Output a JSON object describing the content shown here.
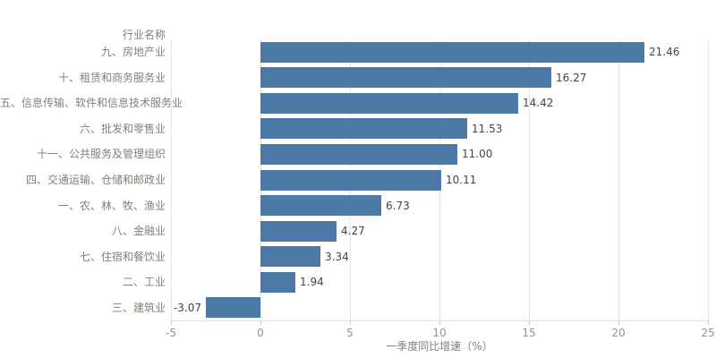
{
  "chart_data": {
    "type": "bar",
    "orientation": "horizontal",
    "title": "",
    "row_header": "行业名称",
    "xlabel": "一季度同比增速（%）",
    "categories": [
      "九、房地产业",
      "十、租赁和商务服务业",
      "五、信息传输、软件和信息技术服务业",
      "六、批发和零售业",
      "十一、公共服务及管理组织",
      "四、交通运输、仓储和邮政业",
      "一、农、林、牧、渔业",
      "八、金融业",
      "七、住宿和餐饮业",
      "二、工业",
      "三、建筑业"
    ],
    "values": [
      21.46,
      16.27,
      14.42,
      11.53,
      11.0,
      10.11,
      6.73,
      4.27,
      3.34,
      1.94,
      -3.07
    ],
    "value_labels": [
      "21.46",
      "16.27",
      "14.42",
      "11.53",
      "11.00",
      "10.11",
      "6.73",
      "4.27",
      "3.34",
      "1.94",
      "-3.07"
    ],
    "xlim": [
      -5,
      25
    ],
    "xticks": [
      -5,
      0,
      5,
      10,
      15,
      20,
      25
    ],
    "xtick_labels": [
      "-5",
      "0",
      "5",
      "10",
      "15",
      "20",
      "25"
    ],
    "grid": true,
    "legend": false,
    "bar_color": "#4d79a7"
  }
}
